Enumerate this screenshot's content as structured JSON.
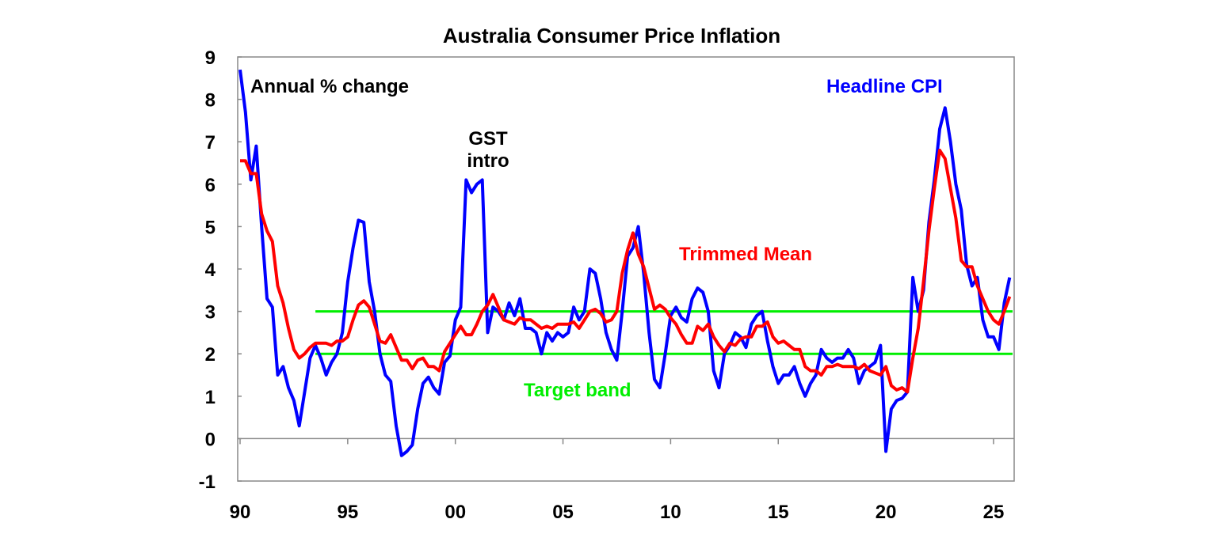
{
  "chart_data": {
    "type": "line",
    "title": "Australia Consumer Price Inflation",
    "subtitle": "Annual % change",
    "xlabel": "",
    "ylabel": "",
    "ylim": [
      -1,
      9
    ],
    "xlim": [
      1990,
      2026
    ],
    "yticks": [
      "9",
      "8",
      "7",
      "6",
      "5",
      "4",
      "3",
      "2",
      "1",
      "0",
      "-1"
    ],
    "ytick_values": [
      9,
      8,
      7,
      6,
      5,
      4,
      3,
      2,
      1,
      0,
      -1
    ],
    "xticks": [
      "90",
      "95",
      "00",
      "05",
      "10",
      "15",
      "20",
      "25"
    ],
    "xtick_values": [
      1990,
      1995,
      2000,
      2005,
      2010,
      2015,
      2020,
      2025
    ],
    "grid": false,
    "x": [
      1990,
      1990.25,
      1990.5,
      1990.75,
      1991,
      1991.25,
      1991.5,
      1991.75,
      1992,
      1992.25,
      1992.5,
      1992.75,
      1993,
      1993.25,
      1993.5,
      1993.75,
      1994,
      1994.25,
      1994.5,
      1994.75,
      1995,
      1995.25,
      1995.5,
      1995.75,
      1996,
      1996.25,
      1996.5,
      1996.75,
      1997,
      1997.25,
      1997.5,
      1997.75,
      1998,
      1998.25,
      1998.5,
      1998.75,
      1999,
      1999.25,
      1999.5,
      1999.75,
      2000,
      2000.25,
      2000.5,
      2000.75,
      2001,
      2001.25,
      2001.5,
      2001.75,
      2002,
      2002.25,
      2002.5,
      2002.75,
      2003,
      2003.25,
      2003.5,
      2003.75,
      2004,
      2004.25,
      2004.5,
      2004.75,
      2005,
      2005.25,
      2005.5,
      2005.75,
      2006,
      2006.25,
      2006.5,
      2006.75,
      2007,
      2007.25,
      2007.5,
      2007.75,
      2008,
      2008.25,
      2008.5,
      2008.75,
      2009,
      2009.25,
      2009.5,
      2009.75,
      2010,
      2010.25,
      2010.5,
      2010.75,
      2011,
      2011.25,
      2011.5,
      2011.75,
      2012,
      2012.25,
      2012.5,
      2012.75,
      2013,
      2013.25,
      2013.5,
      2013.75,
      2014,
      2014.25,
      2014.5,
      2014.75,
      2015,
      2015.25,
      2015.5,
      2015.75,
      2016,
      2016.25,
      2016.5,
      2016.75,
      2017,
      2017.25,
      2017.5,
      2017.75,
      2018,
      2018.25,
      2018.5,
      2018.75,
      2019,
      2019.25,
      2019.5,
      2019.75,
      2020,
      2020.25,
      2020.5,
      2020.75,
      2021,
      2021.25,
      2021.5,
      2021.75,
      2022,
      2022.25,
      2022.5,
      2022.75,
      2023,
      2023.25,
      2023.5,
      2023.75,
      2024,
      2024.25,
      2024.5,
      2024.75,
      2025,
      2025.25,
      2025.5,
      2025.75
    ],
    "series": [
      {
        "name": "Headline CPI",
        "color": "#0000ff",
        "values": [
          8.7,
          7.7,
          6.1,
          6.9,
          5.0,
          3.3,
          3.1,
          1.5,
          1.7,
          1.2,
          0.9,
          0.3,
          1.1,
          1.9,
          2.2,
          1.9,
          1.5,
          1.8,
          2.0,
          2.5,
          3.7,
          4.5,
          5.15,
          5.1,
          3.7,
          3.0,
          2.0,
          1.5,
          1.35,
          0.3,
          -0.4,
          -0.3,
          -0.15,
          0.7,
          1.3,
          1.45,
          1.2,
          1.05,
          1.8,
          1.95,
          2.8,
          3.1,
          6.1,
          5.8,
          6.0,
          6.1,
          2.5,
          3.1,
          3.0,
          2.8,
          3.2,
          2.9,
          3.3,
          2.6,
          2.6,
          2.5,
          2.0,
          2.5,
          2.3,
          2.5,
          2.4,
          2.5,
          3.1,
          2.8,
          3.0,
          4.0,
          3.9,
          3.3,
          2.5,
          2.1,
          1.85,
          3.0,
          4.3,
          4.5,
          5.0,
          3.9,
          2.5,
          1.4,
          1.2,
          2.0,
          2.9,
          3.1,
          2.85,
          2.75,
          3.3,
          3.55,
          3.45,
          3.0,
          1.6,
          1.2,
          2.0,
          2.2,
          2.5,
          2.4,
          2.15,
          2.7,
          2.9,
          3.0,
          2.3,
          1.7,
          1.3,
          1.5,
          1.5,
          1.7,
          1.3,
          1.0,
          1.3,
          1.5,
          2.1,
          1.9,
          1.8,
          1.9,
          1.9,
          2.1,
          1.9,
          1.3,
          1.6,
          1.7,
          1.8,
          2.2,
          -0.3,
          0.7,
          0.9,
          0.95,
          1.1,
          3.8,
          3.0,
          3.5,
          5.1,
          6.1,
          7.3,
          7.8,
          7.0,
          6.0,
          5.4,
          4.1,
          3.6,
          3.8,
          2.8,
          2.4,
          2.4,
          2.1,
          3.2,
          3.8
        ]
      },
      {
        "name": "Trimmed Mean",
        "color": "#ff0000",
        "values": [
          6.55,
          6.55,
          6.25,
          6.25,
          5.3,
          4.9,
          4.65,
          3.6,
          3.2,
          2.6,
          2.1,
          1.9,
          2.0,
          2.15,
          2.25,
          2.25,
          2.25,
          2.2,
          2.3,
          2.3,
          2.4,
          2.8,
          3.15,
          3.25,
          3.1,
          2.7,
          2.3,
          2.25,
          2.45,
          2.15,
          1.85,
          1.85,
          1.65,
          1.85,
          1.9,
          1.7,
          1.7,
          1.6,
          2.05,
          2.25,
          2.45,
          2.65,
          2.45,
          2.45,
          2.7,
          3.0,
          3.15,
          3.4,
          3.1,
          2.8,
          2.75,
          2.7,
          2.85,
          2.8,
          2.8,
          2.7,
          2.6,
          2.65,
          2.6,
          2.7,
          2.7,
          2.7,
          2.75,
          2.6,
          2.8,
          3.0,
          3.05,
          2.95,
          2.75,
          2.8,
          3.0,
          3.9,
          4.45,
          4.85,
          4.35,
          4.05,
          3.55,
          3.05,
          3.15,
          3.05,
          2.85,
          2.7,
          2.45,
          2.25,
          2.25,
          2.65,
          2.55,
          2.7,
          2.4,
          2.2,
          2.05,
          2.25,
          2.2,
          2.35,
          2.4,
          2.4,
          2.65,
          2.65,
          2.75,
          2.4,
          2.25,
          2.3,
          2.2,
          2.1,
          2.1,
          1.7,
          1.6,
          1.6,
          1.5,
          1.7,
          1.7,
          1.75,
          1.7,
          1.7,
          1.7,
          1.65,
          1.75,
          1.6,
          1.55,
          1.5,
          1.7,
          1.25,
          1.15,
          1.2,
          1.1,
          1.9,
          2.6,
          3.7,
          4.9,
          5.9,
          6.8,
          6.6,
          5.9,
          5.2,
          4.2,
          4.05,
          4.05,
          3.6,
          3.3,
          3.0,
          2.8,
          2.7,
          3.0,
          3.35
        ]
      }
    ],
    "target_band": {
      "label": "Target band",
      "lower": 2,
      "upper": 3,
      "from": 1993.5,
      "color": "#00ee00"
    },
    "annotations": {
      "gst": [
        "GST",
        "intro"
      ],
      "headline": "Headline CPI",
      "trimmed": "Trimmed Mean",
      "target": "Target band"
    }
  }
}
